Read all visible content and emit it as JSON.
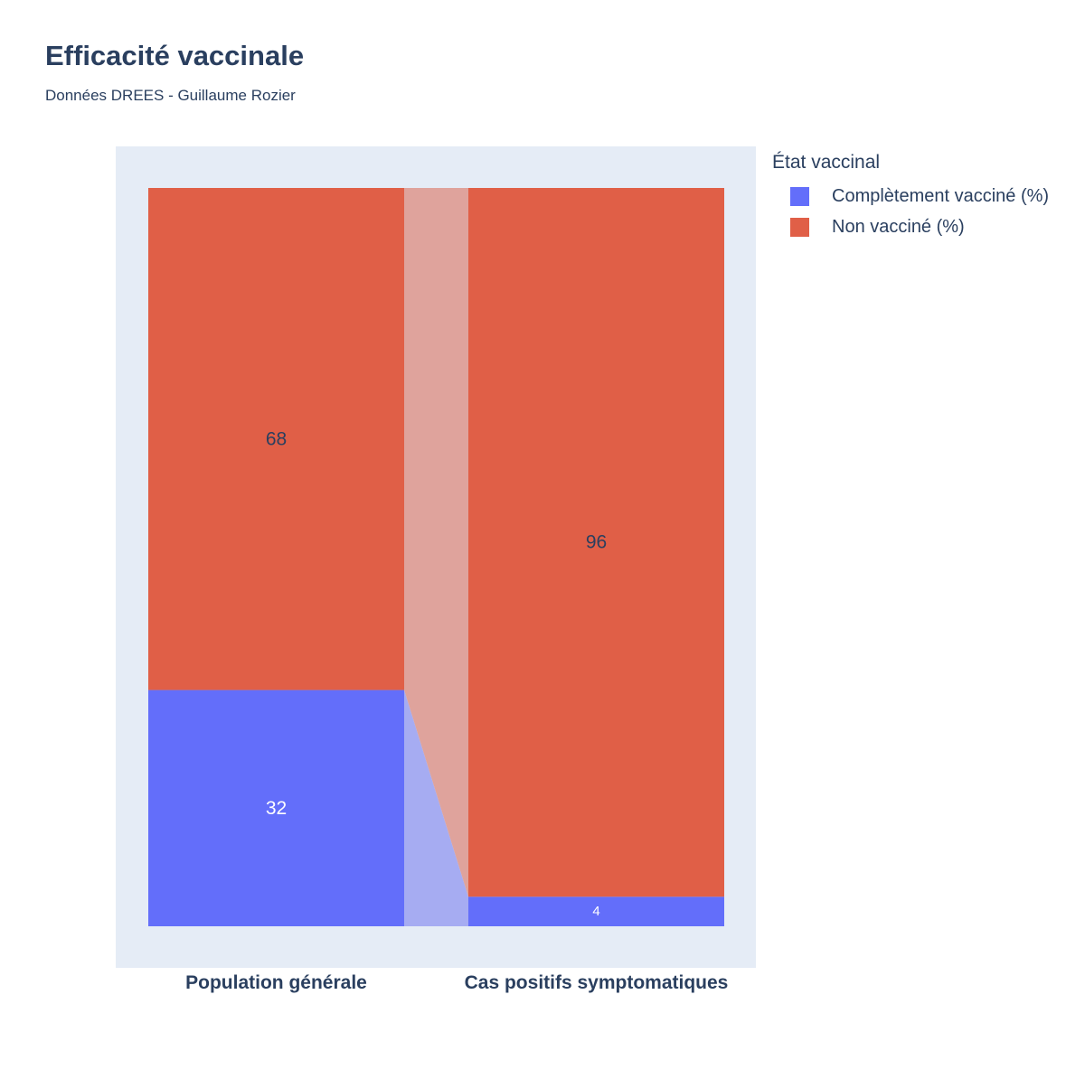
{
  "chart_data": {
    "type": "bar",
    "stacked": true,
    "title": "Efficacité vaccinale",
    "subtitle": "Données DREES - Guillaume Rozier",
    "categories": [
      "Population générale",
      "Cas positifs symptomatiques"
    ],
    "series": [
      {
        "name": "Complètement vacciné (%)",
        "values": [
          32,
          4
        ],
        "color": "#636efa",
        "connector_color": "#a6acf2",
        "label_colors": [
          "#ffffff",
          "#ffffff"
        ]
      },
      {
        "name": "Non vacciné (%)",
        "values": [
          68,
          96
        ],
        "color": "#e05f47",
        "connector_color": "#dfa39c",
        "label_colors": [
          "#2a3f5f",
          "#2a3f5f"
        ]
      }
    ],
    "ylim": [
      0,
      100
    ],
    "legend": {
      "title": "État vaccinal",
      "placement": "top-right"
    },
    "plot_background": "#e5ecf6"
  }
}
